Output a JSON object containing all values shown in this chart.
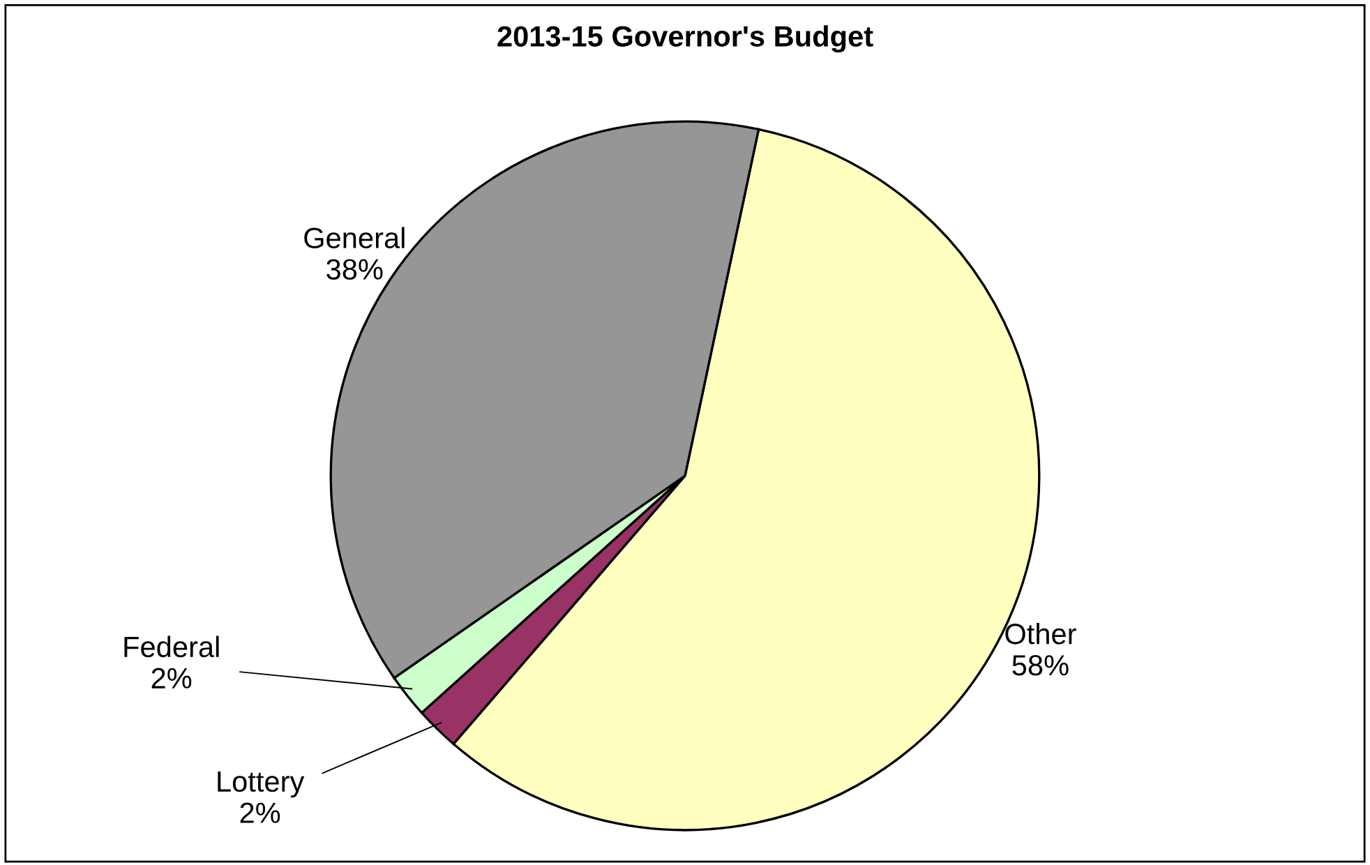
{
  "chart_data": {
    "type": "pie",
    "title": "2013-15 Governor's Budget",
    "categories": [
      "Other",
      "Lottery",
      "Federal",
      "General"
    ],
    "values": [
      58,
      2,
      2,
      38
    ],
    "value_labels": [
      "58%",
      "2%",
      "2%",
      "38%"
    ],
    "colors": [
      "#ffffc0",
      "#993366",
      "#ccffcc",
      "#969696"
    ],
    "legend": false
  }
}
